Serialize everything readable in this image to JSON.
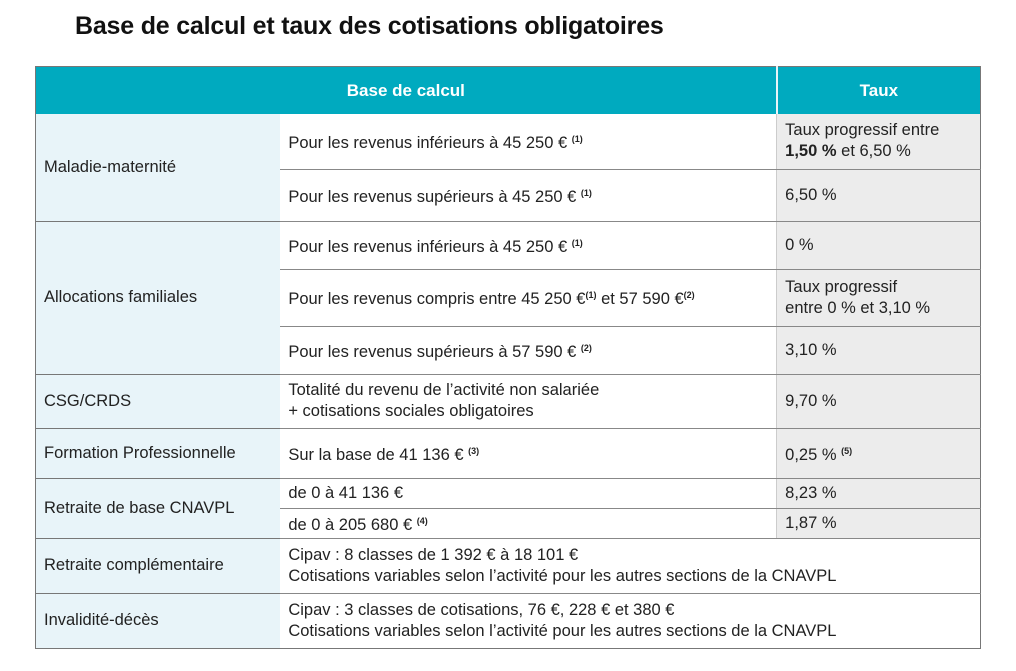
{
  "title": "Base de calcul et taux des cotisations obligatoires",
  "headers": {
    "base": "Base de calcul",
    "taux": "Taux"
  },
  "maladie": {
    "label": "Maladie-maternité",
    "r1": {
      "base": "Pour les revenus inférieurs à 45 250 €",
      "note": "(1)",
      "rate_pre": "Taux progressif entre",
      "rate_bold": "1,50 %",
      "rate_post": "et 6,50 %"
    },
    "r2": {
      "base": "Pour les revenus supérieurs à 45 250 €",
      "note": "(1)",
      "rate": "6,50 %"
    }
  },
  "alloc": {
    "label": "Allocations familiales",
    "r1": {
      "base": "Pour les revenus inférieurs à 45 250 €",
      "note": "(1)",
      "rate": "0 %"
    },
    "r2": {
      "base_a": "Pour les revenus compris entre 45 250 €",
      "note_a": "(1)",
      "base_b": "et 57 590 €",
      "note_b": "(2)",
      "rate_l1": "Taux progressif",
      "rate_l2": "entre 0 % et 3,10 %"
    },
    "r3": {
      "base": "Pour les revenus supérieurs à 57 590 €",
      "note": "(2)",
      "rate": "3,10 %"
    }
  },
  "csg": {
    "label": "CSG/CRDS",
    "base_l1": "Totalité du revenu de l’activité non salariée",
    "base_l2": "+ cotisations sociales obligatoires",
    "rate": "9,70 %"
  },
  "formation": {
    "label": "Formation Professionnelle",
    "base": "Sur la base de 41 136 €",
    "note": "(3)",
    "rate": "0,25 %",
    "rate_note": "(5)"
  },
  "retraite_base": {
    "label": "Retraite de base CNAVPL",
    "r1": {
      "base": "de 0 à 41 136 €",
      "rate": "8,23 %"
    },
    "r2": {
      "base": "de 0 à 205 680 €",
      "note": "(4)",
      "rate": "1,87 %"
    }
  },
  "retraite_compl": {
    "label": "Retraite complémentaire",
    "l1": "Cipav : 8 classes de 1 392 € à 18 101 €",
    "l2": "Cotisations variables selon l’activité pour les autres sections de la CNAVPL"
  },
  "invalidite": {
    "label": "Invalidité-décès",
    "l1": "Cipav : 3 classes de cotisations, 76 €, 228 € et 380 €",
    "l2": "Cotisations variables selon l’activité pour les autres sections de la CNAVPL"
  }
}
